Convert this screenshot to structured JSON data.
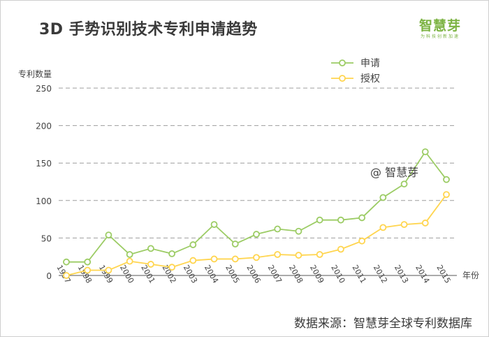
{
  "title": "3D 手势识别技术专利申请趋势",
  "logo": {
    "name": "智慧芽",
    "tagline": "为科技创新加速"
  },
  "watermark": "@ 智慧芽",
  "source": "数据来源：智慧芽全球专利数据库",
  "colors": {
    "series_1": "#9ccc65",
    "series_2": "#ffd54f",
    "grid": "#9e9e9e",
    "axis": "#555555",
    "brand": "#7cb342"
  },
  "chart_data": {
    "type": "line",
    "title": "3D 手势识别技术专利申请趋势",
    "xlabel": "年份",
    "ylabel": "专利数量",
    "ylim": [
      0,
      250
    ],
    "yticks": [
      0,
      50,
      100,
      150,
      200,
      250
    ],
    "grid": true,
    "legend": "top-right",
    "x": [
      "1997",
      "1998",
      "1999",
      "2000",
      "2001",
      "2002",
      "2003",
      "2004",
      "2005",
      "2006",
      "2007",
      "2008",
      "2009",
      "2010",
      "2011",
      "2012",
      "2013",
      "2014",
      "2015"
    ],
    "series": [
      {
        "name": "申请",
        "color": "#9ccc65",
        "values": [
          18,
          18,
          54,
          28,
          36,
          29,
          41,
          68,
          42,
          55,
          62,
          59,
          74,
          74,
          77,
          104,
          122,
          165,
          128
        ]
      },
      {
        "name": "授权",
        "color": "#ffd54f",
        "values": [
          0,
          7,
          7,
          19,
          15,
          11,
          20,
          22,
          22,
          24,
          28,
          27,
          28,
          35,
          46,
          64,
          68,
          70,
          108
        ]
      }
    ]
  }
}
